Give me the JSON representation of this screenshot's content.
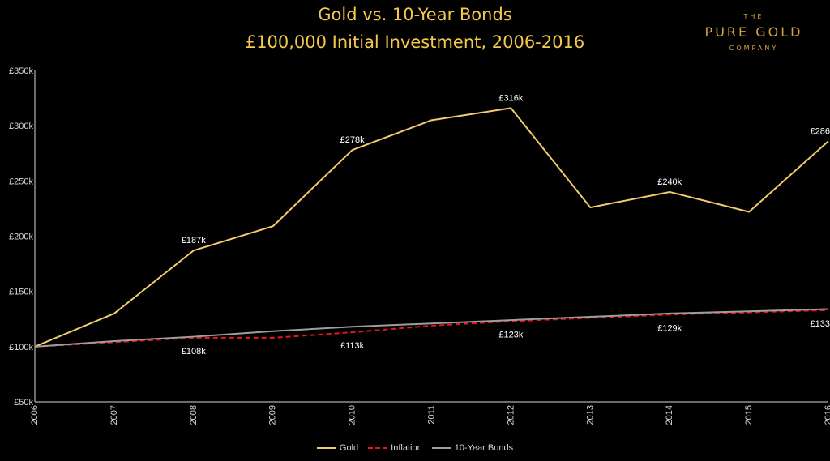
{
  "header": {
    "title": "Gold vs. 10-Year Bonds",
    "subtitle": "£100,000 Initial Investment, 2006-2016"
  },
  "logo": {
    "top": "THE",
    "main": "PURE GOLD",
    "bottom": "COMPANY"
  },
  "colors": {
    "gold": "#f2cc6b",
    "inflation": "#e8161b",
    "bonds": "#9e9e9e",
    "title": "#f2c94c",
    "logo": "#d4a63a"
  },
  "chart_data": {
    "type": "line",
    "x": [
      "2006",
      "2007",
      "2008",
      "2009",
      "2010",
      "2011",
      "2012",
      "2013",
      "2014",
      "2015",
      "2016"
    ],
    "ylim": [
      50,
      350
    ],
    "yticks": [
      {
        "value": 50,
        "label": "£50k"
      },
      {
        "value": 100,
        "label": "£100k"
      },
      {
        "value": 150,
        "label": "£150k"
      },
      {
        "value": 200,
        "label": "£200k"
      },
      {
        "value": 250,
        "label": "£250k"
      },
      {
        "value": 300,
        "label": "£300k"
      },
      {
        "value": 350,
        "label": "£350k"
      }
    ],
    "series": [
      {
        "name": "Gold",
        "color": "#f2cc6b",
        "dash": false,
        "values": [
          100,
          130,
          187,
          209,
          278,
          305,
          316,
          226,
          240,
          222,
          286
        ]
      },
      {
        "name": "Inflation",
        "color": "#e8161b",
        "dash": true,
        "values": [
          100,
          104,
          108,
          108,
          113,
          119,
          123,
          126,
          129,
          131,
          133
        ]
      },
      {
        "name": "10-Year Bonds",
        "color": "#9e9e9e",
        "dash": false,
        "values": [
          100,
          105,
          109,
          114,
          118,
          121,
          124,
          127,
          130,
          132,
          134
        ]
      }
    ],
    "data_labels": [
      {
        "series": "Gold",
        "index": 2,
        "text": "£187k",
        "position": "above"
      },
      {
        "series": "Gold",
        "index": 4,
        "text": "£278k",
        "position": "above"
      },
      {
        "series": "Gold",
        "index": 6,
        "text": "£316k",
        "position": "above"
      },
      {
        "series": "Gold",
        "index": 8,
        "text": "£240k",
        "position": "above"
      },
      {
        "series": "Gold",
        "index": 10,
        "text": "£286",
        "position": "above"
      },
      {
        "series": "Inflation",
        "index": 2,
        "text": "£108k",
        "position": "below"
      },
      {
        "series": "Inflation",
        "index": 4,
        "text": "£113k",
        "position": "below"
      },
      {
        "series": "Inflation",
        "index": 6,
        "text": "£123k",
        "position": "below"
      },
      {
        "series": "Inflation",
        "index": 8,
        "text": "£129k",
        "position": "below"
      },
      {
        "series": "Inflation",
        "index": 10,
        "text": "£133",
        "position": "below"
      }
    ],
    "grid": false,
    "legend": "bottom"
  }
}
